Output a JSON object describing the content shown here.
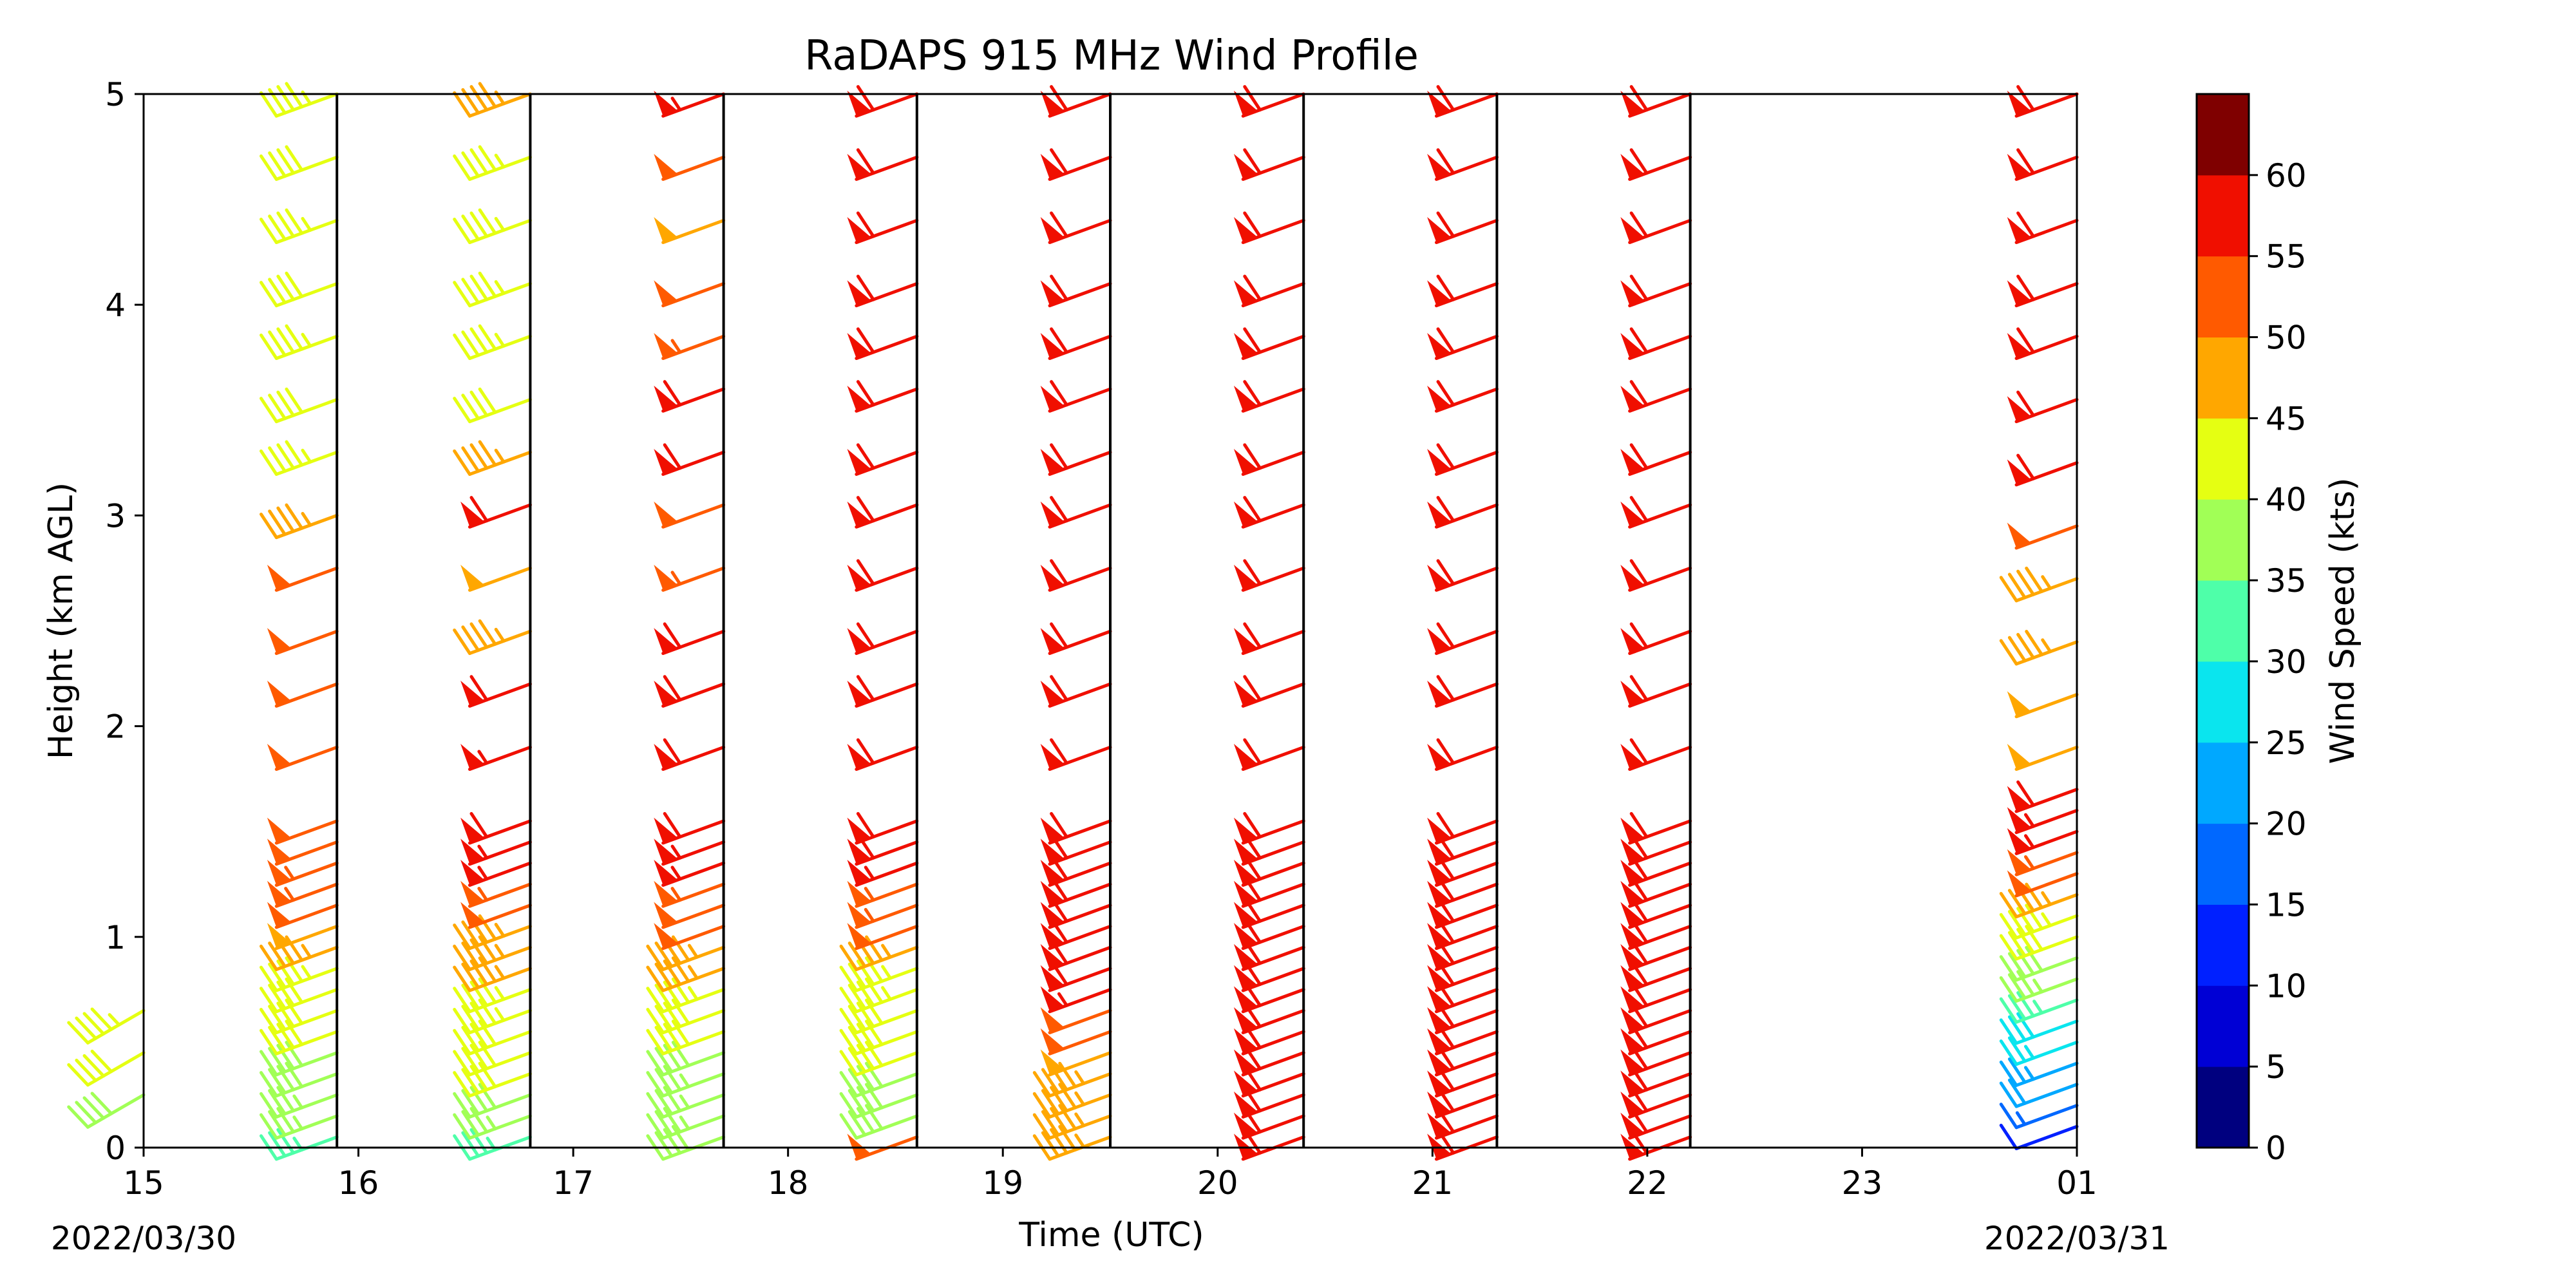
{
  "chart_data": {
    "type": "scatter",
    "subtype": "wind-barb time-height profile",
    "title": "RaDAPS 915 MHz Wind Profile",
    "xlabel": "Time (UTC)",
    "ylabel": "Height (km AGL)",
    "x_tick_labels": [
      "15",
      "16",
      "17",
      "18",
      "19",
      "20",
      "21",
      "22",
      "23",
      "01"
    ],
    "x_date_labels": {
      "start": "2022/03/30",
      "end": "2022/03/31"
    },
    "xlim_hours_utc": [
      15,
      25
    ],
    "y_ticks": [
      0,
      1,
      2,
      3,
      4,
      5
    ],
    "ylim": [
      0,
      5
    ],
    "colorbar": {
      "label": "Wind Speed (kts)",
      "ticks": [
        0,
        5,
        10,
        15,
        20,
        25,
        30,
        35,
        40,
        45,
        50,
        55,
        60
      ],
      "colors": [
        "#00007f",
        "#0000d5",
        "#0020ff",
        "#0068ff",
        "#00a8ff",
        "#0ae5ee",
        "#4effa9",
        "#a1ff56",
        "#e5ff12",
        "#ffa700",
        "#ff5a00",
        "#f00f00",
        "#7f0000"
      ]
    },
    "series": [
      {
        "time": "15:00",
        "heights_km": [
          0.25,
          0.45,
          0.65
        ],
        "speeds_kts": [
          38,
          42,
          44
        ],
        "direction_deg": 240
      },
      {
        "time": "16:00",
        "heights_km": [
          0.05,
          0.15,
          0.25,
          0.35,
          0.45,
          0.55,
          0.65,
          0.75,
          0.85,
          0.95,
          1.05,
          1.15,
          1.25,
          1.35,
          1.45,
          1.55,
          1.9,
          2.2,
          2.45,
          2.75,
          3.0,
          3.3,
          3.55,
          3.85,
          4.1,
          4.4,
          4.7,
          5.0
        ],
        "speeds_kts": [
          33,
          35,
          37,
          38,
          39,
          40,
          41,
          42,
          44,
          45,
          48,
          52,
          54,
          53,
          52,
          51,
          51,
          50,
          51,
          52,
          46,
          43,
          42,
          43,
          42,
          43,
          42,
          44
        ],
        "direction_deg": 250
      },
      {
        "time": "17:00",
        "heights_km": [
          0.05,
          0.15,
          0.25,
          0.35,
          0.45,
          0.55,
          0.65,
          0.75,
          0.85,
          0.95,
          1.05,
          1.15,
          1.25,
          1.35,
          1.45,
          1.55,
          1.9,
          2.2,
          2.45,
          2.75,
          3.05,
          3.3,
          3.55,
          3.85,
          4.1,
          4.4,
          4.7,
          5.0
        ],
        "speeds_kts": [
          33,
          36,
          38,
          40,
          41,
          42,
          43,
          44,
          45,
          46,
          47,
          52,
          54,
          56,
          57,
          58,
          57,
          58,
          47,
          48,
          58,
          47,
          42,
          43,
          43,
          43,
          44,
          46
        ],
        "direction_deg": 250
      },
      {
        "time": "18:00",
        "heights_km": [
          0.05,
          0.15,
          0.25,
          0.35,
          0.45,
          0.55,
          0.65,
          0.75,
          0.85,
          0.95,
          1.05,
          1.15,
          1.25,
          1.35,
          1.45,
          1.55,
          1.9,
          2.2,
          2.45,
          2.75,
          3.05,
          3.3,
          3.6,
          3.85,
          4.1,
          4.4,
          4.7,
          5.0
        ],
        "speeds_kts": [
          38,
          36,
          35,
          36,
          38,
          40,
          42,
          44,
          45,
          47,
          50,
          52,
          53,
          55,
          57,
          58,
          58,
          58,
          58,
          53,
          52,
          58,
          58,
          53,
          52,
          48,
          52,
          56
        ],
        "direction_deg": 250
      },
      {
        "time": "19:00",
        "heights_km": [
          0.05,
          0.15,
          0.25,
          0.35,
          0.45,
          0.55,
          0.65,
          0.75,
          0.85,
          0.95,
          1.05,
          1.15,
          1.25,
          1.35,
          1.45,
          1.55,
          1.9,
          2.2,
          2.45,
          2.75,
          3.05,
          3.3,
          3.6,
          3.85,
          4.1,
          4.4,
          4.7,
          5.0
        ],
        "speeds_kts": [
          52,
          38,
          38,
          39,
          40,
          41,
          42,
          43,
          44,
          46,
          50,
          53,
          54,
          56,
          58,
          59,
          58,
          58,
          58,
          58,
          58,
          58,
          58,
          58,
          59,
          58,
          58,
          58
        ],
        "direction_deg": 250
      },
      {
        "time": "20:00",
        "heights_km": [
          0.05,
          0.15,
          0.25,
          0.35,
          0.45,
          0.55,
          0.65,
          0.75,
          0.85,
          0.95,
          1.05,
          1.15,
          1.25,
          1.35,
          1.45,
          1.55,
          1.9,
          2.2,
          2.45,
          2.75,
          3.05,
          3.3,
          3.6,
          3.85,
          4.1,
          4.4,
          4.7,
          5.0
        ],
        "speeds_kts": [
          47,
          45,
          45,
          47,
          48,
          50,
          52,
          55,
          58,
          58,
          59,
          59,
          59,
          59,
          59,
          59,
          58,
          59,
          59,
          59,
          59,
          59,
          59,
          59,
          59,
          59,
          59,
          58
        ],
        "direction_deg": 250
      },
      {
        "time": "21:00",
        "heights_km": [
          0.05,
          0.15,
          0.25,
          0.35,
          0.45,
          0.55,
          0.65,
          0.75,
          0.85,
          0.95,
          1.05,
          1.15,
          1.25,
          1.35,
          1.45,
          1.55,
          1.9,
          2.2,
          2.45,
          2.75,
          3.05,
          3.3,
          3.6,
          3.85,
          4.1,
          4.4,
          4.7,
          5.0
        ],
        "speeds_kts": [
          59,
          59,
          59,
          59,
          59,
          59,
          59,
          59,
          59,
          59,
          59,
          59,
          59,
          59,
          59,
          59,
          59,
          59,
          59,
          59,
          59,
          59,
          59,
          59,
          59,
          59,
          59,
          59
        ],
        "direction_deg": 250
      },
      {
        "time": "22:00",
        "heights_km": [
          0.05,
          0.15,
          0.25,
          0.35,
          0.45,
          0.55,
          0.65,
          0.75,
          0.85,
          0.95,
          1.05,
          1.15,
          1.25,
          1.35,
          1.45,
          1.55,
          1.9,
          2.2,
          2.45,
          2.75,
          3.05,
          3.3,
          3.6,
          3.85,
          4.1,
          4.4,
          4.7,
          5.0
        ],
        "speeds_kts": [
          59,
          59,
          59,
          59,
          59,
          59,
          59,
          59,
          59,
          59,
          59,
          59,
          59,
          59,
          59,
          59,
          59,
          59,
          59,
          59,
          59,
          59,
          59,
          59,
          59,
          59,
          59,
          59
        ],
        "direction_deg": 250
      },
      {
        "time": "23:00",
        "heights_km": [
          0.05,
          0.15,
          0.25,
          0.35,
          0.45,
          0.55,
          0.65,
          0.75,
          0.85,
          0.95,
          1.05,
          1.15,
          1.25,
          1.35,
          1.45,
          1.55,
          1.9,
          2.2,
          2.45,
          2.75,
          3.05,
          3.3,
          3.6,
          3.85,
          4.1,
          4.4,
          4.7,
          5.0
        ],
        "speeds_kts": [
          59,
          59,
          59,
          59,
          59,
          59,
          59,
          59,
          59,
          59,
          59,
          59,
          59,
          59,
          59,
          59,
          59,
          59,
          59,
          59,
          59,
          59,
          59,
          59,
          59,
          59,
          59,
          59
        ],
        "direction_deg": 250
      },
      {
        "time": "01:00",
        "heights_km": [
          0.1,
          0.2,
          0.3,
          0.4,
          0.5,
          0.6,
          0.7,
          0.8,
          0.9,
          1.0,
          1.1,
          1.2,
          1.3,
          1.4,
          1.5,
          1.6,
          1.7,
          1.9,
          2.15,
          2.4,
          2.7,
          2.95,
          3.25,
          3.55,
          3.85,
          4.1,
          4.4,
          4.7,
          5.0
        ],
        "speeds_kts": [
          10,
          17,
          20,
          23,
          26,
          29,
          33,
          36,
          38,
          41,
          43,
          46,
          52,
          53,
          55,
          57,
          58,
          49,
          48,
          47,
          45,
          52,
          58,
          58,
          58,
          58,
          58,
          58,
          58
        ],
        "direction_deg": 250
      }
    ]
  }
}
